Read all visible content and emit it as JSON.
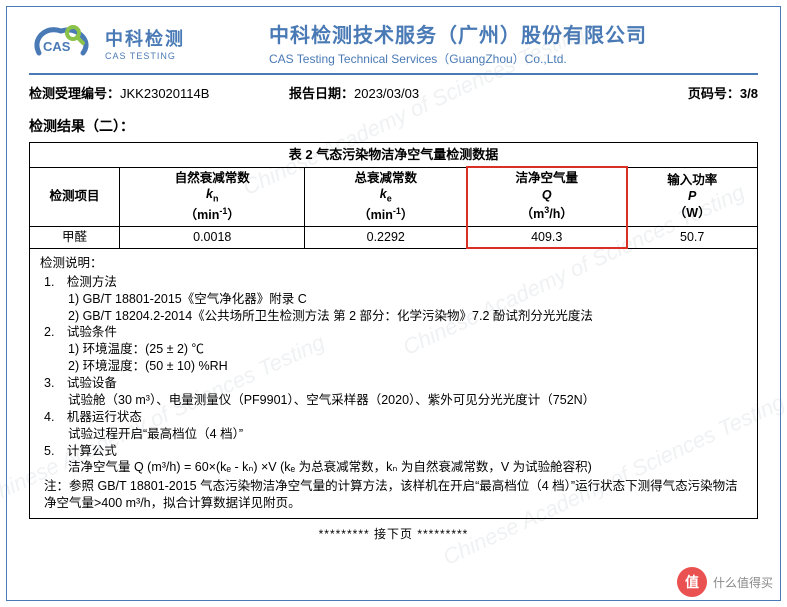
{
  "header": {
    "logo_cn": "中科检测",
    "logo_en": "CAS TESTING",
    "title_cn": "中科检测技术服务（广州）股份有限公司",
    "title_en": "CAS Testing Technical Services（GuangZhou）Co.,Ltd."
  },
  "meta": {
    "report_no_label": "检测受理编号：",
    "report_no": "JKK23020114B",
    "date_label": "报告日期：",
    "date": "2023/03/03",
    "page_label": "页码号：",
    "page": "3/8"
  },
  "section_title": "检测结果（二）：",
  "table": {
    "caption": "表 2  气态污染物洁净空气量检测数据",
    "row_header_label": "检测项目",
    "columns": [
      {
        "name": "自然衰减常数",
        "symbol_html": "<span class='ital'>k</span><sub>n</sub>",
        "unit_html": "（min<sup>-1</sup>）"
      },
      {
        "name": "总衰减常数",
        "symbol_html": "<span class='ital'>k</span><sub>e</sub>",
        "unit_html": "（min<sup>-1</sup>）"
      },
      {
        "name": "洁净空气量",
        "symbol_html": "<span class='ital'>Q</span>",
        "unit_html": "（m<sup>3</sup>/h）"
      },
      {
        "name": "输入功率",
        "symbol_html": "<span class='ital'>P</span>",
        "unit_html": "（W）"
      }
    ],
    "rows": [
      {
        "label": "甲醛",
        "values": [
          "0.0018",
          "0.2292",
          "409.3",
          "50.7"
        ]
      }
    ],
    "highlight_col": 2
  },
  "notes": {
    "head": "检测说明：",
    "items": [
      {
        "num": "1.",
        "text": "检测方法",
        "children": [
          "1) GB/T 18801-2015《空气净化器》附录 C",
          "2) GB/T 18204.2-2014《公共场所卫生检测方法  第 2 部分：化学污染物》7.2 酚试剂分光光度法"
        ]
      },
      {
        "num": "2.",
        "text": "试验条件",
        "children": [
          "1) 环境温度：(25 ± 2) ℃",
          "2) 环境湿度：(50 ± 10) %RH"
        ]
      },
      {
        "num": "3.",
        "text": "试验设备",
        "children": [
          "试验舱（30 m³）、电量测量仪（PF9901）、空气采样器（2020）、紫外可见分光光度计（752N）"
        ]
      },
      {
        "num": "4.",
        "text": "机器运行状态",
        "children": [
          "试验过程开启“最高档位（4 档）”"
        ]
      },
      {
        "num": "5.",
        "text": "计算公式",
        "children": [
          "洁净空气量 Q (m³/h) = 60×(kₑ - kₙ) ×V (kₑ 为总衰减常数，kₙ 为自然衰减常数，V 为试验舱容积)"
        ]
      }
    ],
    "footer": "注：参照 GB/T 18801-2015 气态污染物洁净空气量的计算方法，该样机在开启“最高档位（4 档）”运行状态下测得气态污染物洁净空气量>400 m³/h，拟合计算数据详见附页。"
  },
  "footer_nav": "*********  接下页  *********",
  "watermark_text": "Chinese Academy of Sciences Testing",
  "corner": {
    "badge": "值",
    "text": "什么值得买"
  },
  "colors": {
    "brand_blue": "#4a7ab5",
    "highlight_red": "#d93025",
    "logo_green": "#8bc34a"
  }
}
